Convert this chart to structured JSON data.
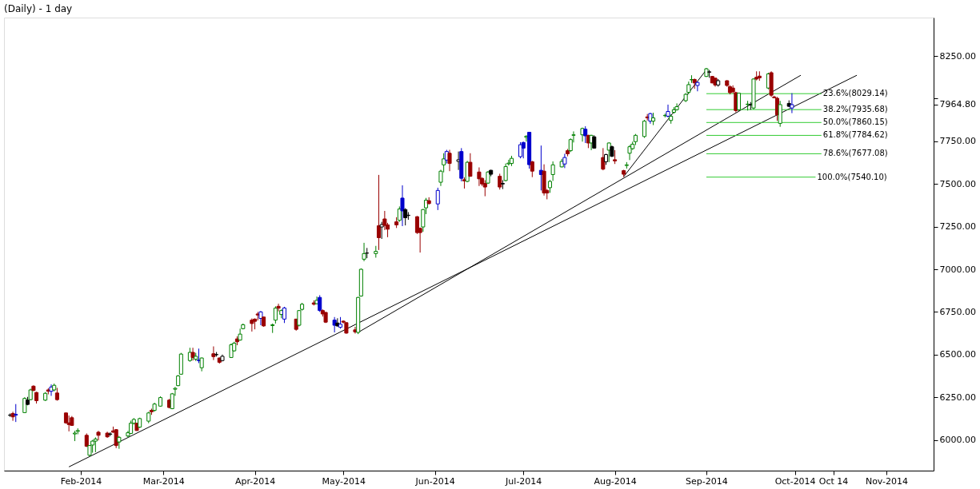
{
  "chart_data": {
    "type": "candlestick",
    "title": "(Daily) - 1 day",
    "x": [
      "2014-01-08",
      "2014-01-09",
      "2014-01-10",
      "2014-01-13",
      "2014-01-14",
      "2014-01-15",
      "2014-01-16",
      "2014-01-17",
      "2014-01-20",
      "2014-01-21",
      "2014-01-22",
      "2014-01-23",
      "2014-01-24",
      "2014-01-27",
      "2014-01-28",
      "2014-01-29",
      "2014-01-30",
      "2014-01-31",
      "2014-02-03",
      "2014-02-04",
      "2014-02-05",
      "2014-02-06",
      "2014-02-07",
      "2014-02-10",
      "2014-02-11",
      "2014-02-12",
      "2014-02-13",
      "2014-02-14",
      "2014-02-17",
      "2014-02-18",
      "2014-02-19",
      "2014-02-20",
      "2014-02-21",
      "2014-02-24",
      "2014-02-25",
      "2014-02-26",
      "2014-02-28",
      "2014-03-03",
      "2014-03-04",
      "2014-03-05",
      "2014-03-06",
      "2014-03-07",
      "2014-03-10",
      "2014-03-11",
      "2014-03-12",
      "2014-03-13",
      "2014-03-14",
      "2014-03-18",
      "2014-03-19",
      "2014-03-20",
      "2014-03-21",
      "2014-03-24",
      "2014-03-25",
      "2014-03-26",
      "2014-03-27",
      "2014-03-28",
      "2014-03-31",
      "2014-04-01",
      "2014-04-02",
      "2014-04-03",
      "2014-04-04",
      "2014-04-07",
      "2014-04-08",
      "2014-04-09",
      "2014-04-10",
      "2014-04-11",
      "2014-04-15",
      "2014-04-16",
      "2014-04-17",
      "2014-04-21",
      "2014-04-22",
      "2014-04-23",
      "2014-04-24",
      "2014-04-25",
      "2014-04-28",
      "2014-04-29",
      "2014-04-30",
      "2014-05-01",
      "2014-05-02",
      "2014-05-05",
      "2014-05-06",
      "2014-05-07",
      "2014-05-08",
      "2014-05-09",
      "2014-05-12",
      "2014-05-13",
      "2014-05-14",
      "2014-05-15",
      "2014-05-16",
      "2014-05-19",
      "2014-05-20",
      "2014-05-21",
      "2014-05-22",
      "2014-05-23",
      "2014-05-26",
      "2014-05-27",
      "2014-05-28",
      "2014-05-29",
      "2014-05-30",
      "2014-06-02",
      "2014-06-03",
      "2014-06-04",
      "2014-06-05",
      "2014-06-06",
      "2014-06-09",
      "2014-06-10",
      "2014-06-11",
      "2014-06-12",
      "2014-06-13",
      "2014-06-16",
      "2014-06-17",
      "2014-06-18",
      "2014-06-19",
      "2014-06-20",
      "2014-06-23",
      "2014-06-24",
      "2014-06-25",
      "2014-06-26",
      "2014-06-27",
      "2014-06-30",
      "2014-07-01",
      "2014-07-02",
      "2014-07-03",
      "2014-07-04",
      "2014-07-07",
      "2014-07-08",
      "2014-07-09",
      "2014-07-10",
      "2014-07-11",
      "2014-07-14",
      "2014-07-15",
      "2014-07-16",
      "2014-07-17",
      "2014-07-18",
      "2014-07-21",
      "2014-07-22",
      "2014-07-23",
      "2014-07-24",
      "2014-07-25",
      "2014-07-28",
      "2014-07-29",
      "2014-07-30",
      "2014-07-31",
      "2014-08-01",
      "2014-08-04",
      "2014-08-05",
      "2014-08-06",
      "2014-08-07",
      "2014-08-08",
      "2014-08-11",
      "2014-08-12",
      "2014-08-13",
      "2014-08-14",
      "2014-08-18",
      "2014-08-19",
      "2014-08-20",
      "2014-08-21",
      "2014-08-22",
      "2014-08-25",
      "2014-08-26",
      "2014-08-27",
      "2014-08-28",
      "2014-08-29",
      "2014-09-01",
      "2014-09-02",
      "2014-09-03",
      "2014-09-04",
      "2014-09-05",
      "2014-09-08",
      "2014-09-09",
      "2014-09-10",
      "2014-09-11",
      "2014-09-12",
      "2014-09-15",
      "2014-09-16",
      "2014-09-17",
      "2014-09-18",
      "2014-09-19",
      "2014-09-22",
      "2014-09-23",
      "2014-09-24",
      "2014-09-25",
      "2014-09-26",
      "2014-09-29",
      "2014-09-30"
    ],
    "ohlc": [
      [
        6145,
        6155,
        6135,
        6145
      ],
      [
        6155,
        6165,
        6112,
        6135
      ],
      [
        6145,
        6210,
        6105,
        6150
      ],
      [
        6160,
        6250,
        6158,
        6243
      ],
      [
        6233,
        6252,
        6203,
        6208
      ],
      [
        6236,
        6300,
        6232,
        6293
      ],
      [
        6315,
        6320,
        6285,
        6290
      ],
      [
        6278,
        6282,
        6213,
        6230
      ],
      [
        6233,
        6280,
        6228,
        6273
      ],
      [
        6293,
        6303,
        6267,
        6285
      ],
      [
        6285,
        6325,
        6258,
        6310
      ],
      [
        6293,
        6330,
        6285,
        6320
      ],
      [
        6275,
        6305,
        6230,
        6236
      ],
      [
        6158,
        6160,
        6095,
        6100
      ],
      [
        6100,
        6143,
        6050,
        6090
      ],
      [
        6130,
        6140,
        6083,
        6085
      ],
      [
        6035,
        6053,
        5993,
        6040
      ],
      [
        6050,
        6068,
        6033,
        6055
      ],
      [
        6027,
        6038,
        5958,
        5963
      ],
      [
        5910,
        5970,
        5903,
        5967
      ],
      [
        5970,
        6000,
        5925,
        5993
      ],
      [
        5993,
        6015,
        5928,
        6005
      ],
      [
        6045,
        6053,
        5997,
        6027
      ],
      [
        6040,
        6048,
        6012,
        6018
      ],
      [
        6035,
        6045,
        6022,
        6033
      ],
      [
        6053,
        6078,
        6042,
        6045
      ],
      [
        6060,
        6063,
        5952,
        5967
      ],
      [
        5988,
        6023,
        5948,
        6015
      ],
      [
        6023,
        6053,
        6015,
        6042
      ],
      [
        6038,
        6113,
        6035,
        6098
      ],
      [
        6098,
        6128,
        6090,
        6120
      ],
      [
        6098,
        6100,
        6053,
        6055
      ],
      [
        6075,
        6130,
        6070,
        6125
      ],
      [
        6110,
        6165,
        6098,
        6158
      ],
      [
        6173,
        6183,
        6147,
        6165
      ],
      [
        6173,
        6218,
        6165,
        6210
      ],
      [
        6198,
        6255,
        6195,
        6248
      ],
      [
        6233,
        6240,
        6185,
        6190
      ],
      [
        6183,
        6275,
        6180,
        6270
      ],
      [
        6297,
        6310,
        6258,
        6302
      ],
      [
        6318,
        6380,
        6315,
        6375
      ],
      [
        6385,
        6510,
        6383,
        6503
      ],
      [
        6465,
        6540,
        6458,
        6513
      ],
      [
        6513,
        6540,
        6465,
        6483
      ],
      [
        6473,
        6510,
        6462,
        6490
      ],
      [
        6467,
        6535,
        6450,
        6465
      ],
      [
        6423,
        6483,
        6402,
        6480
      ],
      [
        6505,
        6548,
        6468,
        6488
      ],
      [
        6500,
        6515,
        6488,
        6500
      ],
      [
        6480,
        6483,
        6447,
        6455
      ],
      [
        6465,
        6500,
        6460,
        6490
      ],
      [
        6483,
        6565,
        6480,
        6558
      ],
      [
        6522,
        6575,
        6517,
        6567
      ],
      [
        6592,
        6607,
        6555,
        6575
      ],
      [
        6585,
        6652,
        6582,
        6620
      ],
      [
        6652,
        6682,
        6648,
        6675
      ],
      [
        6702,
        6712,
        6635,
        6682
      ],
      [
        6708,
        6712,
        6648,
        6695
      ],
      [
        6738,
        6750,
        6700,
        6732
      ],
      [
        6712,
        6755,
        6672,
        6750
      ],
      [
        6720,
        6722,
        6663,
        6668
      ],
      [
        6670,
        6682,
        6627,
        6675
      ],
      [
        6702,
        6783,
        6682,
        6772
      ],
      [
        6783,
        6798,
        6753,
        6772
      ],
      [
        6735,
        6765,
        6713,
        6758
      ],
      [
        6708,
        6780,
        6685,
        6773
      ],
      [
        6708,
        6710,
        6640,
        6648
      ],
      [
        6672,
        6760,
        6665,
        6758
      ],
      [
        6765,
        6803,
        6758,
        6795
      ],
      [
        6803,
        6818,
        6788,
        6795
      ],
      [
        6798,
        6840,
        6795,
        6818
      ],
      [
        6835,
        6848,
        6750,
        6758
      ],
      [
        6758,
        6765,
        6723,
        6738
      ],
      [
        6747,
        6750,
        6685,
        6690
      ],
      [
        6702,
        6720,
        6630,
        6672
      ],
      [
        6685,
        6713,
        6663,
        6668
      ],
      [
        6660,
        6720,
        6652,
        6678
      ],
      [
        6696,
        6700,
        6683,
        6690
      ],
      [
        6687,
        6690,
        6622,
        6626
      ],
      [
        6645,
        6663,
        6623,
        6633
      ],
      [
        6630,
        6838,
        6620,
        6835
      ],
      [
        6843,
        7005,
        6840,
        7000
      ],
      [
        7059,
        7155,
        7047,
        7092
      ],
      [
        7095,
        7125,
        7065,
        7095
      ],
      [
        7092,
        7137,
        7068,
        7105
      ],
      [
        7255,
        7553,
        7113,
        7185
      ],
      [
        7248,
        7278,
        7178,
        7262
      ],
      [
        7295,
        7342,
        7230,
        7257
      ],
      [
        7260,
        7272,
        7188,
        7235
      ],
      [
        7278,
        7305,
        7242,
        7260
      ],
      [
        7287,
        7368,
        7278,
        7353
      ],
      [
        7417,
        7492,
        7253,
        7342
      ],
      [
        7350,
        7358,
        7257,
        7302
      ],
      [
        7317,
        7335,
        7290,
        7315
      ],
      [
        7308,
        7312,
        7207,
        7215
      ],
      [
        7240,
        7245,
        7098,
        7215
      ],
      [
        7248,
        7353,
        7220,
        7350
      ],
      [
        7360,
        7418,
        7323,
        7405
      ],
      [
        7402,
        7422,
        7380,
        7385
      ],
      [
        7383,
        7478,
        7347,
        7462
      ],
      [
        7510,
        7583,
        7488,
        7575
      ],
      [
        7612,
        7680,
        7568,
        7647
      ],
      [
        7640,
        7700,
        7620,
        7690
      ],
      [
        7680,
        7700,
        7575,
        7620
      ],
      [
        7632,
        7690,
        7582,
        7642
      ],
      [
        7690,
        7710,
        7515,
        7533
      ],
      [
        7525,
        7538,
        7473,
        7518
      ],
      [
        7515,
        7635,
        7510,
        7627
      ],
      [
        7627,
        7680,
        7542,
        7545
      ],
      [
        7570,
        7597,
        7488,
        7530
      ],
      [
        7533,
        7538,
        7488,
        7500
      ],
      [
        7503,
        7522,
        7428,
        7482
      ],
      [
        7505,
        7575,
        7500,
        7570
      ],
      [
        7580,
        7583,
        7545,
        7557
      ],
      [
        7545,
        7560,
        7467,
        7482
      ],
      [
        7503,
        7522,
        7470,
        7500
      ],
      [
        7520,
        7620,
        7515,
        7602
      ],
      [
        7618,
        7642,
        7608,
        7622
      ],
      [
        7620,
        7665,
        7605,
        7650
      ],
      [
        7660,
        7745,
        7650,
        7730
      ],
      [
        7743,
        7748,
        7650,
        7710
      ],
      [
        7773,
        7785,
        7748,
        7780
      ],
      [
        7803,
        7805,
        7590,
        7613
      ],
      [
        7630,
        7635,
        7540,
        7575
      ],
      [
        7580,
        7725,
        7462,
        7555
      ],
      [
        7575,
        7615,
        7432,
        7447
      ],
      [
        7462,
        7470,
        7410,
        7447
      ],
      [
        7478,
        7523,
        7448,
        7515
      ],
      [
        7555,
        7632,
        7518,
        7612
      ],
      [
        7600,
        7647,
        7597,
        7632
      ],
      [
        7617,
        7677,
        7593,
        7655
      ],
      [
        7695,
        7705,
        7662,
        7677
      ],
      [
        7695,
        7767,
        7687,
        7760
      ],
      [
        7785,
        7808,
        7743,
        7788
      ],
      [
        7788,
        7830,
        7748,
        7825
      ],
      [
        7821,
        7838,
        7740,
        7782
      ],
      [
        7785,
        7788,
        7710,
        7740
      ],
      [
        7740,
        7788,
        7698,
        7785
      ],
      [
        7776,
        7785,
        7707,
        7710
      ],
      [
        7655,
        7710,
        7580,
        7587
      ],
      [
        7630,
        7677,
        7612,
        7672
      ],
      [
        7698,
        7743,
        7628,
        7740
      ],
      [
        7718,
        7725,
        7658,
        7662
      ],
      [
        7642,
        7698,
        7617,
        7635
      ],
      [
        7578,
        7583,
        7540.1,
        7557
      ],
      [
        7608,
        7628,
        7590,
        7612
      ],
      [
        7680,
        7728,
        7640,
        7718
      ],
      [
        7707,
        7748,
        7700,
        7733
      ],
      [
        7748,
        7793,
        7728,
        7785
      ],
      [
        7778,
        7875,
        7770,
        7868
      ],
      [
        7893,
        7910,
        7872,
        7887
      ],
      [
        7868,
        7917,
        7853,
        7912
      ],
      [
        7868,
        7917,
        7845,
        7887
      ],
      [
        7900,
        7912,
        7890,
        7902
      ],
      [
        7897,
        7965,
        7890,
        7925
      ],
      [
        7872,
        7908,
        7853,
        7897
      ],
      [
        7920,
        7950,
        7912,
        7935
      ],
      [
        7935,
        7972,
        7930,
        7953
      ],
      [
        7988,
        8033,
        7980,
        8025
      ],
      [
        8037,
        8100,
        8025,
        8082
      ],
      [
        8110,
        8137,
        8092,
        8112
      ],
      [
        8112,
        8118,
        8058,
        8092
      ],
      [
        8077,
        8100,
        8043,
        8095
      ],
      [
        8130,
        8180,
        8127,
        8175
      ],
      [
        8155,
        8168,
        8122,
        8157
      ],
      [
        8130,
        8133,
        8090,
        8092
      ],
      [
        8120,
        8122,
        8070,
        8080
      ],
      [
        8080,
        8115,
        8070,
        8105
      ],
      [
        8105,
        8108,
        8070,
        8077
      ],
      [
        8070,
        8078,
        8025,
        8035
      ],
      [
        8062,
        8078,
        8032,
        8040
      ],
      [
        8035,
        8040,
        7920,
        7930
      ],
      [
        7935,
        8035,
        7927,
        8032
      ],
      [
        7965,
        7987,
        7930,
        7968
      ],
      [
        7965,
        7980,
        7935,
        7963
      ],
      [
        7945,
        8120,
        7937,
        8115
      ],
      [
        8125,
        8160,
        8107,
        8115
      ],
      [
        8132,
        8160,
        8105,
        8122
      ],
      [
        8062,
        8152,
        8055,
        8145
      ],
      [
        8152,
        8160,
        8010,
        8020
      ],
      [
        8010,
        8017,
        8002,
        8005
      ],
      [
        8002,
        8010,
        7870,
        7905
      ],
      [
        7855,
        7987,
        7835,
        7965
      ],
      [
        7972,
        7990,
        7950,
        7955
      ],
      [
        7945,
        8032,
        7915,
        7964.8
      ]
    ],
    "colors": [
      "#000000",
      "#990000",
      "#0000cc",
      "#008000",
      "#000000",
      "#008000",
      "#990000",
      "#990000",
      "#008000",
      "#990000",
      "#0000cc",
      "#008000",
      "#990000",
      "#990000",
      "#990000",
      "#990000",
      "#008000",
      "#008000",
      "#990000",
      "#008000",
      "#008000",
      "#008000",
      "#990000",
      "#990000",
      "#000000",
      "#990000",
      "#990000",
      "#008000",
      "#008000",
      "#008000",
      "#008000",
      "#990000",
      "#008000",
      "#008000",
      "#990000",
      "#008000",
      "#008000",
      "#990000",
      "#008000",
      "#008000",
      "#008000",
      "#008000",
      "#008000",
      "#990000",
      "#008000",
      "#0000cc",
      "#008000",
      "#990000",
      "#000000",
      "#990000",
      "#000000",
      "#008000",
      "#008000",
      "#990000",
      "#008000",
      "#008000",
      "#990000",
      "#990000",
      "#990000",
      "#0000cc",
      "#990000",
      "#008000",
      "#008000",
      "#990000",
      "#008000",
      "#0000cc",
      "#990000",
      "#008000",
      "#008000",
      "#990000",
      "#008000",
      "#0000cc",
      "#990000",
      "#990000",
      "#0000cc",
      "#000000",
      "#0000cc",
      "#990000",
      "#990000",
      "#990000",
      "#008000",
      "#008000",
      "#008000",
      "#000000",
      "#008000",
      "#990000",
      "#000000",
      "#990000",
      "#990000",
      "#990000",
      "#008000",
      "#0000cc",
      "#000000",
      "#000000",
      "#990000",
      "#990000",
      "#008000",
      "#008000",
      "#990000",
      "#0000cc",
      "#008000",
      "#008000",
      "#0000cc",
      "#990000",
      "#000000",
      "#0000cc",
      "#990000",
      "#008000",
      "#990000",
      "#990000",
      "#990000",
      "#990000",
      "#008000",
      "#000000",
      "#990000",
      "#000000",
      "#008000",
      "#008000",
      "#008000",
      "#0000cc",
      "#0000cc",
      "#008000",
      "#0000cc",
      "#990000",
      "#0000cc",
      "#990000",
      "#990000",
      "#008000",
      "#008000",
      "#008000",
      "#0000cc",
      "#990000",
      "#008000",
      "#008000",
      "#008000",
      "#0000cc",
      "#990000",
      "#008000",
      "#000000",
      "#990000",
      "#000000",
      "#008000",
      "#000000",
      "#990000",
      "#990000",
      "#008000",
      "#008000",
      "#008000",
      "#008000",
      "#008000",
      "#990000",
      "#0000cc",
      "#008000",
      "#008000",
      "#0000cc",
      "#008000",
      "#008000",
      "#008000",
      "#008000",
      "#008000",
      "#008000",
      "#990000",
      "#0000cc",
      "#008000",
      "#000000",
      "#990000",
      "#990000",
      "#000000",
      "#990000",
      "#990000",
      "#990000",
      "#990000",
      "#008000",
      "#008000",
      "#000000",
      "#008000",
      "#990000",
      "#990000",
      "#008000",
      "#990000",
      "#990000",
      "#990000",
      "#008000",
      "#000000",
      "#0000cc"
    ],
    "series": [
      {
        "type": "line",
        "color": "#000000",
        "x": [
          "2014-01-28",
          "2014-10-22"
        ],
        "values": [
          5842,
          8137
        ]
      },
      {
        "type": "line",
        "color": "#000000",
        "x": [
          "2014-05-06",
          "2014-10-03"
        ],
        "values": [
          6630,
          8137
        ]
      },
      {
        "type": "line",
        "color": "#000000",
        "x": [
          "2014-08-04",
          "2014-09-01"
        ],
        "values": [
          7543,
          8169
        ]
      },
      {
        "type": "line",
        "color": "#33cc33",
        "x": [
          "2014-09-01",
          "2014-10-10"
        ],
        "values": [
          8029.14,
          8029.14
        ]
      },
      {
        "type": "line",
        "color": "#33cc33",
        "x": [
          "2014-09-01",
          "2014-10-10"
        ],
        "values": [
          7935.68,
          7935.68
        ]
      },
      {
        "type": "line",
        "color": "#33cc33",
        "x": [
          "2014-09-01",
          "2014-10-10"
        ],
        "values": [
          7860.15,
          7860.15
        ]
      },
      {
        "type": "line",
        "color": "#33cc33",
        "x": [
          "2014-09-01",
          "2014-10-10"
        ],
        "values": [
          7784.62,
          7784.62
        ]
      },
      {
        "type": "line",
        "color": "#33cc33",
        "x": [
          "2014-09-01",
          "2014-10-10"
        ],
        "values": [
          7677.08,
          7677.08
        ]
      },
      {
        "type": "line",
        "color": "#33cc33",
        "x": [
          "2014-09-01",
          "2014-10-08"
        ],
        "values": [
          7540.1,
          7540.1
        ]
      }
    ],
    "annotations": [
      {
        "text": "23.6%(8029.14)",
        "x": "2014-10-10",
        "y": 8029.14
      },
      {
        "text": "38.2%(7935.68)",
        "x": "2014-10-10",
        "y": 7935.68
      },
      {
        "text": "50.0%(7860.15)",
        "x": "2014-10-10",
        "y": 7860.15
      },
      {
        "text": "61.8%(7784.62)",
        "x": "2014-10-10",
        "y": 7784.62
      },
      {
        "text": "78.6%(7677.08)",
        "x": "2014-10-10",
        "y": 7677.08
      },
      {
        "text": "100.0%(7540.10)",
        "x": "2014-10-08",
        "y": 7540.1
      }
    ],
    "xlim": [
      "2014-01-06",
      "2014-11-17"
    ],
    "ylim": [
      5820,
      8475
    ],
    "xticks": [
      {
        "value": "2014-02-01",
        "label": "Feb-2014"
      },
      {
        "value": "2014-03-01",
        "label": "Mar-2014"
      },
      {
        "value": "2014-04-01",
        "label": "Apr-2014"
      },
      {
        "value": "2014-05-01",
        "label": "May-2014"
      },
      {
        "value": "2014-06-01",
        "label": "Jun-2014"
      },
      {
        "value": "2014-07-01",
        "label": "Jul-2014"
      },
      {
        "value": "2014-08-01",
        "label": "Aug-2014"
      },
      {
        "value": "2014-09-01",
        "label": "Sep-2014"
      },
      {
        "value": "2014-10-01",
        "label": "Oct-2014"
      },
      {
        "value": "2014-10-14",
        "label": "Oct 14"
      },
      {
        "value": "2014-11-01",
        "label": "Nov-2014"
      }
    ],
    "yticks": [
      {
        "value": 6000,
        "label": "6000.00"
      },
      {
        "value": 6250,
        "label": "6250.00"
      },
      {
        "value": 6500,
        "label": "6500.00"
      },
      {
        "value": 6750,
        "label": "6750.00"
      },
      {
        "value": 7000,
        "label": "7000.00"
      },
      {
        "value": 7250,
        "label": "7250.00"
      },
      {
        "value": 7500,
        "label": "7500.00"
      },
      {
        "value": 7750,
        "label": "7750.00"
      },
      {
        "value": 7964.8,
        "label": "7964.80"
      },
      {
        "value": 8000,
        "label": null
      },
      {
        "value": 8250,
        "label": "8250.00"
      }
    ],
    "grid": false
  }
}
